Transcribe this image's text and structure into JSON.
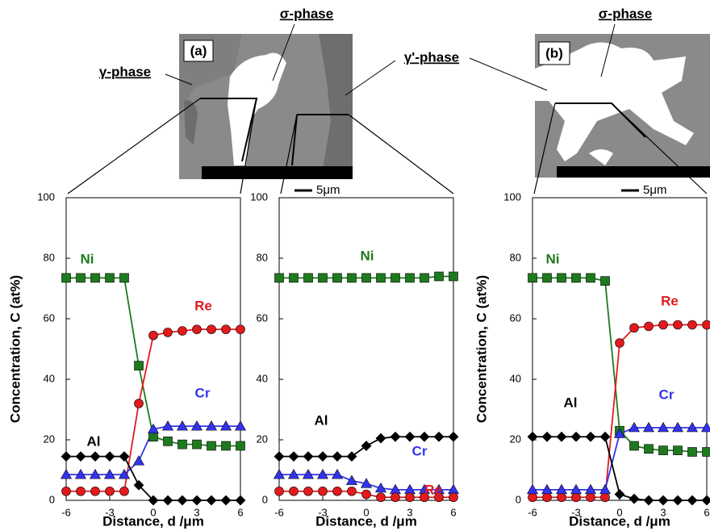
{
  "chart_data": [
    {
      "type": "line",
      "x": [
        -6,
        -5,
        -4,
        -3,
        -2,
        -1,
        0,
        1,
        2,
        3,
        4,
        5,
        6
      ],
      "xlim": [
        -6,
        6
      ],
      "ylim": [
        0,
        100
      ],
      "xticks": [
        -6,
        -3,
        0,
        3,
        6
      ],
      "yticks": [
        0,
        20,
        40,
        60,
        80,
        100
      ],
      "x_label": "Distance,  d /μm",
      "y_label": "Concentration,  C (at%)",
      "series": [
        {
          "name": "Ni",
          "color": "#1e7a1e",
          "marker": "square",
          "values": [
            73.5,
            73.5,
            73.5,
            73.5,
            73.5,
            44.5,
            21,
            19.5,
            18.5,
            18.5,
            18,
            18,
            18
          ]
        },
        {
          "name": "Re",
          "color": "#e31a1c",
          "marker": "circle",
          "values": [
            3,
            3,
            3,
            3,
            3,
            32,
            54.5,
            55.5,
            56,
            56.5,
            56.5,
            56.5,
            56.5
          ]
        },
        {
          "name": "Cr",
          "color": "#3333ee",
          "marker": "triangle",
          "values": [
            8.5,
            8.5,
            8.5,
            8.5,
            8.5,
            13,
            23.5,
            24.5,
            24.5,
            24.5,
            24.5,
            24.5,
            24.5
          ]
        },
        {
          "name": "Al",
          "color": "#000000",
          "marker": "diamond",
          "values": [
            14.5,
            14.5,
            14.5,
            14.5,
            14.5,
            5,
            0,
            0,
            0,
            0,
            0,
            0,
            0
          ]
        }
      ]
    },
    {
      "type": "line",
      "x": [
        -6,
        -5,
        -4,
        -3,
        -2,
        -1,
        0,
        1,
        2,
        3,
        4,
        5,
        6
      ],
      "xlim": [
        -6,
        6
      ],
      "ylim": [
        0,
        100
      ],
      "xticks": [
        -6,
        -3,
        0,
        3,
        6
      ],
      "yticks": [
        0,
        20,
        40,
        60,
        80,
        100
      ],
      "x_label": "Distance,  d /μm",
      "series": [
        {
          "name": "Ni",
          "color": "#1e7a1e",
          "marker": "square",
          "values": [
            73.5,
            73.5,
            73.5,
            73.5,
            73.5,
            73.5,
            73.5,
            73.5,
            73.5,
            73.5,
            73.5,
            74,
            74
          ]
        },
        {
          "name": "Al",
          "color": "#000000",
          "marker": "diamond",
          "values": [
            14.5,
            14.5,
            14.5,
            14.5,
            14.5,
            14.5,
            18,
            20.5,
            21,
            21,
            21,
            21,
            21
          ]
        },
        {
          "name": "Cr",
          "color": "#3333ee",
          "marker": "triangle",
          "values": [
            8.5,
            8.5,
            8.5,
            8.5,
            8.5,
            6.5,
            5.5,
            4,
            3.5,
            3.5,
            3.5,
            3.5,
            3.5
          ]
        },
        {
          "name": "Re",
          "color": "#e31a1c",
          "marker": "circle",
          "values": [
            3,
            3,
            3,
            3,
            3,
            3,
            2,
            1,
            1,
            1,
            1,
            1,
            1
          ]
        }
      ]
    },
    {
      "type": "line",
      "x": [
        -6,
        -5,
        -4,
        -3,
        -2,
        -1,
        0,
        1,
        2,
        3,
        4,
        5,
        6
      ],
      "xlim": [
        -6,
        6
      ],
      "ylim": [
        0,
        100
      ],
      "xticks": [
        -6,
        -3,
        0,
        3,
        6
      ],
      "yticks": [
        0,
        20,
        40,
        60,
        80,
        100
      ],
      "x_label": "Distance,  d /μm",
      "y_label": "Concentration,  C (at%)",
      "series": [
        {
          "name": "Ni",
          "color": "#1e7a1e",
          "marker": "square",
          "values": [
            73.5,
            73.5,
            73.5,
            73.5,
            73.5,
            72.5,
            23,
            18,
            17,
            16.5,
            16.5,
            16,
            16
          ]
        },
        {
          "name": "Re",
          "color": "#e31a1c",
          "marker": "circle",
          "values": [
            1,
            1,
            1,
            1,
            1,
            1,
            52,
            57,
            57.5,
            58,
            58,
            58,
            58
          ]
        },
        {
          "name": "Cr",
          "color": "#3333ee",
          "marker": "triangle",
          "values": [
            3.5,
            3.5,
            3.5,
            3.5,
            3.5,
            3.5,
            22,
            24,
            24,
            24,
            24,
            24,
            24
          ]
        },
        {
          "name": "Al",
          "color": "#000000",
          "marker": "diamond",
          "values": [
            21,
            21,
            21,
            21,
            21,
            21,
            2,
            0.5,
            0,
            0,
            0,
            0,
            0
          ]
        }
      ]
    }
  ],
  "annotations": {
    "panel_a": "(a)",
    "panel_b": "(b)",
    "sigma_a": "σ-phase",
    "sigma_b": "σ-phase",
    "gamma": "γ-phase",
    "gamma_prime": "γ'-phase",
    "scale_a": "5μm",
    "scale_b": "5μm"
  }
}
